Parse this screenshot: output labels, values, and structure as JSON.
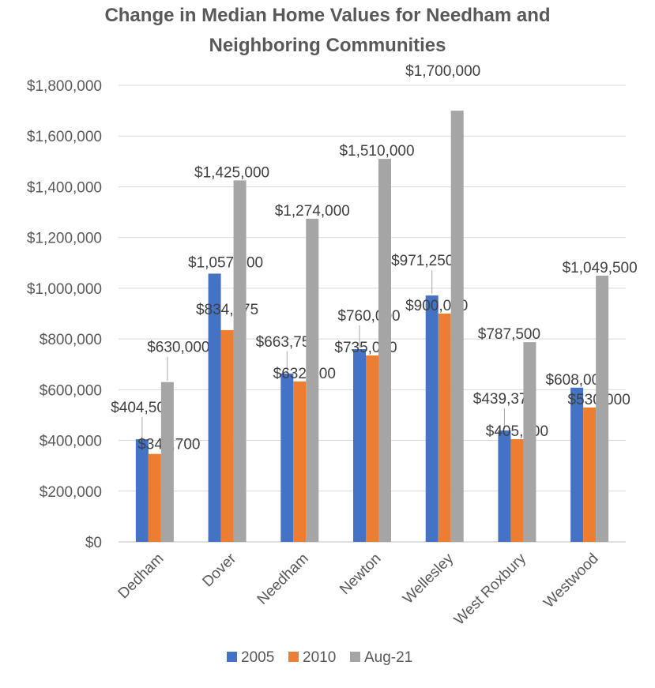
{
  "chart_data": {
    "type": "bar",
    "title_line1": "Change in Median Home Values for Needham and",
    "title_line2": "Neighboring Communities",
    "categories": [
      "Dedham",
      "Dover",
      "Needham",
      "Newton",
      "Wellesley",
      "West Roxbury",
      "Westwood"
    ],
    "series": [
      {
        "name": "2005",
        "color": "#4472C4",
        "values": [
          404500,
          1057500,
          663750,
          760000,
          971250,
          439375,
          608000
        ],
        "labels": [
          "$404,500",
          "$1,057,500",
          "$663,750",
          "$760,000",
          "$971,250",
          "$439,375",
          "$608,000"
        ]
      },
      {
        "name": "2010",
        "color": "#ED7D31",
        "values": [
          346700,
          834875,
          632500,
          735000,
          900000,
          405000,
          530000
        ],
        "labels": [
          "$346,700",
          "$834,875",
          "$632,500",
          "$735,000",
          "$900,000",
          "$405,000",
          "$530,000"
        ]
      },
      {
        "name": "Aug-21",
        "color": "#A5A5A5",
        "values": [
          630000,
          1425000,
          1274000,
          1510000,
          1700000,
          787500,
          1049500
        ],
        "labels": [
          "$630,000",
          "$1,425,000",
          "$1,274,000",
          "$1,510,000",
          "$1,700,000",
          "$787,500",
          "$1,049,500"
        ]
      }
    ],
    "ylim": [
      0,
      1800000
    ],
    "yticks": [
      0,
      200000,
      400000,
      600000,
      800000,
      1000000,
      1200000,
      1400000,
      1600000,
      1800000
    ],
    "ytick_labels": [
      "$0",
      "$200,000",
      "$400,000",
      "$600,000",
      "$800,000",
      "$1,000,000",
      "$1,200,000",
      "$1,400,000",
      "$1,600,000",
      "$1,800,000"
    ],
    "grid": true,
    "legend_position": "bottom",
    "xlabel": "",
    "ylabel": ""
  }
}
